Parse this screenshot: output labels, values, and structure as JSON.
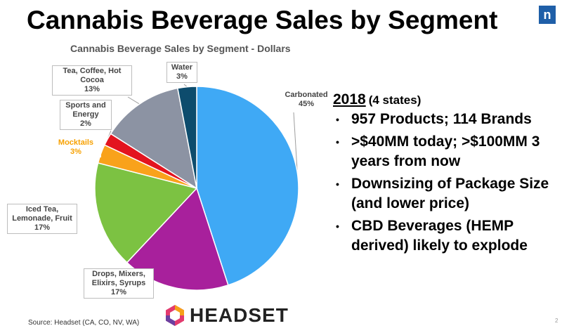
{
  "page": {
    "title": "Cannabis Beverage Sales by Segment",
    "logo_letter": "n",
    "source": "Source: Headset  (CA, CO, NV, WA)",
    "brand_name": "HEADSET",
    "page_tick": "2"
  },
  "chart_data": {
    "type": "pie",
    "title": "Cannabis Beverage Sales by Segment - Dollars",
    "unit": "%",
    "slices": [
      {
        "label": "Carbonated",
        "value": 45,
        "display": "45%",
        "color": "#3fa9f5"
      },
      {
        "label": "Drops, Mixers, Elixirs, Syrups",
        "label_lines": [
          "Drops, Mixers,",
          "Elixirs, Syrups"
        ],
        "value": 17,
        "display": "17%",
        "color": "#a8209c"
      },
      {
        "label": "Iced Tea, Lemonade, Fruit",
        "label_lines": [
          "Iced Tea,",
          "Lemonade, Fruit"
        ],
        "value": 17,
        "display": "17%",
        "color": "#7cc242"
      },
      {
        "label": "Mocktails",
        "value": 3,
        "display": "3%",
        "color": "#f9a21b"
      },
      {
        "label": "Sports and Energy",
        "label_lines": [
          "Sports and",
          "Energy"
        ],
        "value": 2,
        "display": "2%",
        "color": "#e3141f"
      },
      {
        "label": "Tea, Coffee, Hot Cocoa",
        "label_lines": [
          "Tea, Coffee, Hot",
          "Cocoa"
        ],
        "value": 13,
        "display": "13%",
        "color": "#8c93a3"
      },
      {
        "label": "Water",
        "value": 3,
        "display": "3%",
        "color": "#0d4c6d"
      }
    ]
  },
  "info": {
    "year": "2018",
    "note": "(4 states)",
    "bullets": [
      "957 Products; 114 Brands",
      ">$40MM today; >$100MM 3 years from now",
      " Downsizing of Package Size (and lower price)",
      "CBD Beverages (HEMP derived) likely to explode"
    ]
  }
}
